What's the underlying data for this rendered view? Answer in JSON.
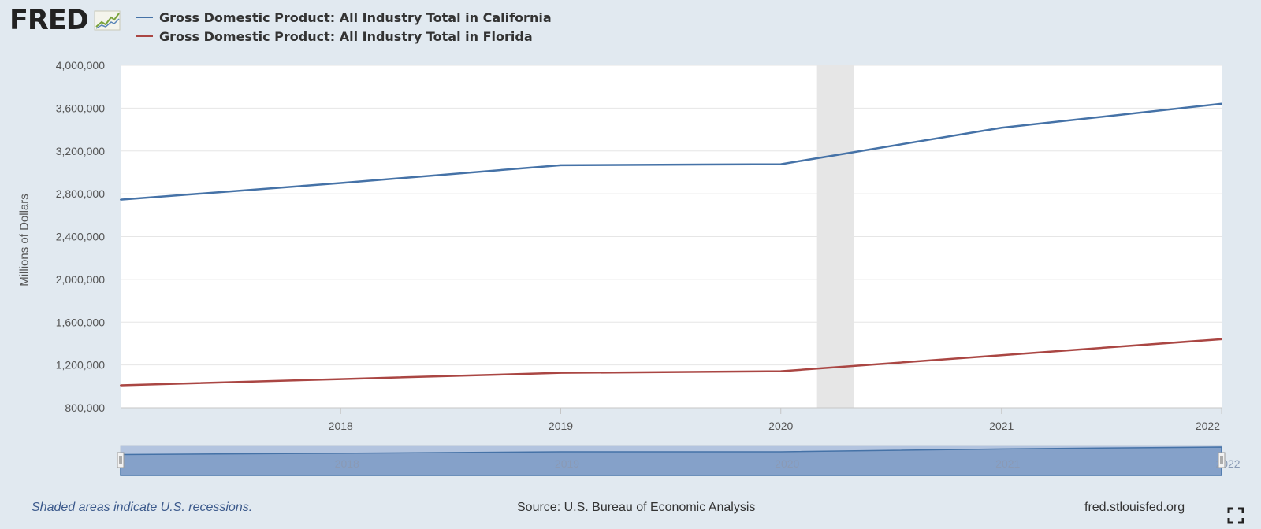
{
  "logo": {
    "text": "FRED"
  },
  "legend": [
    {
      "label": "Gross Domestic Product: All Industry Total in California",
      "color": "#4572a7"
    },
    {
      "label": "Gross Domestic Product: All Industry Total in Florida",
      "color": "#aa4643"
    }
  ],
  "chart_data": {
    "type": "line",
    "ylabel": "Millions of Dollars",
    "ylim": [
      800000,
      4000000
    ],
    "yticks": [
      800000,
      1200000,
      1600000,
      2000000,
      2400000,
      2800000,
      3200000,
      3600000,
      4000000
    ],
    "ytick_labels": [
      "800,000",
      "1,200,000",
      "1,600,000",
      "2,000,000",
      "2,400,000",
      "2,800,000",
      "3,200,000",
      "3,600,000",
      "4,000,000"
    ],
    "xlim": [
      "2017-01-01",
      "2022-01-01"
    ],
    "xticks": [
      "2018-01-01",
      "2019-01-01",
      "2020-01-01",
      "2021-01-01",
      "2022-01-01"
    ],
    "xtick_labels": [
      "2018",
      "2019",
      "2020",
      "2021",
      "2022"
    ],
    "x": [
      "2017-01-01",
      "2018-01-01",
      "2019-01-01",
      "2020-01-01",
      "2021-01-01",
      "2022-01-01"
    ],
    "series": [
      {
        "name": "Gross Domestic Product: All Industry Total in California",
        "color": "#4572a7",
        "values": [
          2745000,
          2900000,
          3067000,
          3076000,
          3417000,
          3641000
        ]
      },
      {
        "name": "Gross Domestic Product: All Industry Total in Florida",
        "color": "#aa4643",
        "values": [
          1010000,
          1068000,
          1126000,
          1141000,
          1291000,
          1441000
        ]
      }
    ],
    "recessions": [
      {
        "start": "2020-03-01",
        "end": "2020-05-01"
      }
    ],
    "grid": true,
    "legend_position": "top-left",
    "navigator": {
      "fill": "#7d9bc6",
      "window_fill": "#b3c4df"
    }
  },
  "footer": {
    "recession_note": "Shaded areas indicate U.S. recessions.",
    "source": "Source: U.S. Bureau of Economic Analysis",
    "site": "fred.stlouisfed.org"
  }
}
